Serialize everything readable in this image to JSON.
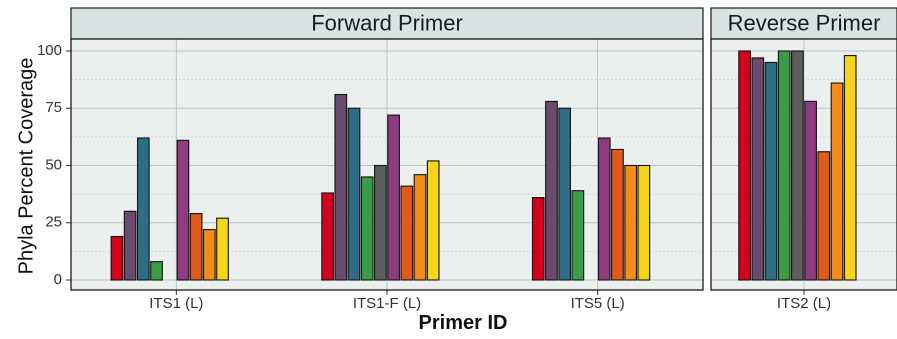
{
  "chart_data": {
    "type": "bar",
    "title": "",
    "xlabel": "Primer ID",
    "ylabel": "Phyla Percent Coverage",
    "ylim": [
      0,
      108
    ],
    "yticks": [
      "0",
      "25",
      "50",
      "75",
      "100"
    ],
    "ytick_values": [
      0,
      25,
      50,
      75,
      100
    ],
    "grid": true,
    "legend": "none",
    "series_colors": [
      "#d4001e",
      "#6b4a6e",
      "#2f6d87",
      "#3b9c48",
      "#5e5e5e",
      "#8e3b7f",
      "#e05a1b",
      "#f48c1a",
      "#f5d51c",
      "#fff53a"
    ],
    "panels": [
      {
        "strip_label": "Forward Primer",
        "categories": [
          "ITS1 (L)",
          "ITS1-F (L)",
          "ITS5 (L)"
        ],
        "groups": [
          {
            "category": "ITS1 (L)",
            "values": [
              19,
              30,
              62,
              8,
              0,
              61,
              29,
              22,
              27,
              null
            ]
          },
          {
            "category": "ITS1-F (L)",
            "values": [
              38,
              81,
              75,
              45,
              50,
              72,
              41,
              46,
              52,
              null
            ]
          },
          {
            "category": "ITS5 (L)",
            "values": [
              36,
              78,
              75,
              39,
              0,
              62,
              57,
              50,
              50,
              null
            ]
          }
        ]
      },
      {
        "strip_label": "Reverse Primer",
        "categories": [
          "ITS2 (L)"
        ],
        "groups": [
          {
            "category": "ITS2 (L)",
            "values": [
              100,
              97,
              95,
              100,
              100,
              78,
              56,
              86,
              98,
              null
            ]
          }
        ]
      }
    ]
  }
}
